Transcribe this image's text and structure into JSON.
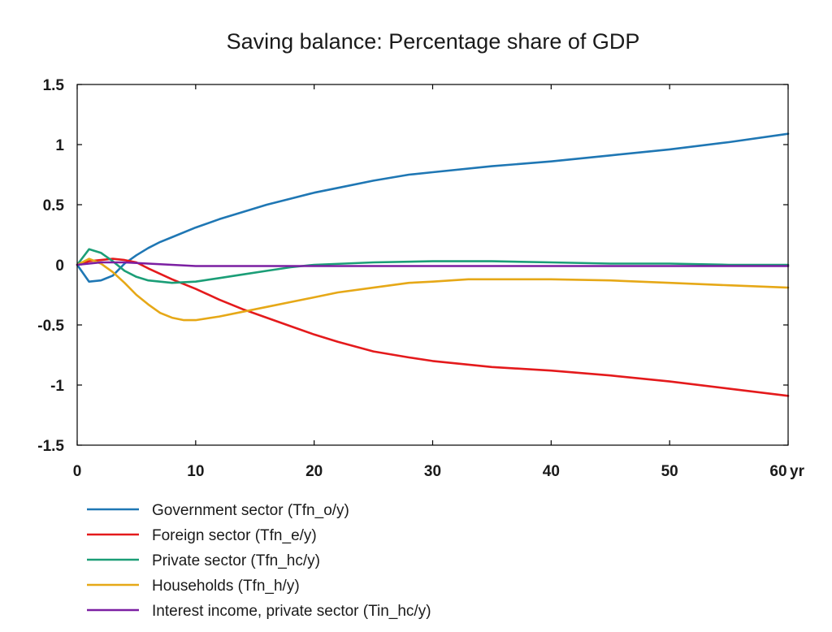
{
  "chart_data": {
    "type": "line",
    "title": "Saving balance: Percentage share of GDP",
    "xlabel": "",
    "ylabel": "",
    "x_unit_label": "yr",
    "xlim": [
      0,
      60
    ],
    "ylim": [
      -1.5,
      1.5
    ],
    "x_ticks": [
      0,
      10,
      20,
      30,
      40,
      50,
      60
    ],
    "x_tick_labels": [
      "0",
      "10",
      "20",
      "30",
      "40",
      "50",
      "60"
    ],
    "y_ticks": [
      1.5,
      1,
      0.5,
      0,
      -0.5,
      -1,
      -1.5
    ],
    "y_tick_labels": [
      "1.5",
      "1",
      "0.5",
      "0",
      "-0.5",
      "-1",
      "-1.5"
    ],
    "grid": false,
    "legend_position": "bottom",
    "series": [
      {
        "name": "Government sector (Tfn_o/y)",
        "color": "#1f77b4",
        "x": [
          0,
          1,
          2,
          3,
          4,
          5,
          6,
          7,
          8,
          10,
          12,
          14,
          16,
          18,
          20,
          22,
          25,
          28,
          30,
          35,
          40,
          45,
          50,
          55,
          60
        ],
        "y": [
          0,
          -0.14,
          -0.13,
          -0.09,
          0.01,
          0.08,
          0.14,
          0.19,
          0.23,
          0.31,
          0.38,
          0.44,
          0.5,
          0.55,
          0.6,
          0.64,
          0.7,
          0.75,
          0.77,
          0.82,
          0.86,
          0.91,
          0.96,
          1.02,
          1.09
        ]
      },
      {
        "name": "Foreign sector (Tfn_e/y)",
        "color": "#e41a1c",
        "x": [
          0,
          1,
          2,
          3,
          4,
          5,
          6,
          8,
          10,
          12,
          14,
          16,
          18,
          20,
          22,
          25,
          28,
          30,
          35,
          40,
          45,
          50,
          55,
          60
        ],
        "y": [
          0,
          0.03,
          0.04,
          0.05,
          0.04,
          0.02,
          -0.03,
          -0.12,
          -0.2,
          -0.29,
          -0.37,
          -0.44,
          -0.51,
          -0.58,
          -0.64,
          -0.72,
          -0.77,
          -0.8,
          -0.85,
          -0.88,
          -0.92,
          -0.97,
          -1.03,
          -1.09
        ]
      },
      {
        "name": "Private sector (Tfn_hc/y)",
        "color": "#1b9e77",
        "x": [
          0,
          1,
          2,
          3,
          4,
          5,
          6,
          8,
          10,
          12,
          14,
          16,
          18,
          20,
          25,
          30,
          35,
          40,
          45,
          50,
          55,
          60
        ],
        "y": [
          0,
          0.13,
          0.1,
          0.03,
          -0.05,
          -0.1,
          -0.13,
          -0.15,
          -0.14,
          -0.11,
          -0.08,
          -0.05,
          -0.02,
          0.0,
          0.02,
          0.03,
          0.03,
          0.02,
          0.01,
          0.01,
          0.0,
          0.0
        ]
      },
      {
        "name": "Households (Tfn_h/y)",
        "color": "#e6a817",
        "x": [
          0,
          1,
          2,
          3,
          4,
          5,
          6,
          7,
          8,
          9,
          10,
          12,
          14,
          16,
          18,
          20,
          22,
          25,
          28,
          30,
          33,
          35,
          38,
          40,
          45,
          50,
          55,
          60
        ],
        "y": [
          0,
          0.05,
          0.01,
          -0.06,
          -0.15,
          -0.25,
          -0.33,
          -0.4,
          -0.44,
          -0.46,
          -0.46,
          -0.43,
          -0.39,
          -0.35,
          -0.31,
          -0.27,
          -0.23,
          -0.19,
          -0.15,
          -0.14,
          -0.12,
          -0.12,
          -0.12,
          -0.12,
          -0.13,
          -0.15,
          -0.17,
          -0.19
        ]
      },
      {
        "name": "Interest income, private sector (Tin_hc/y)",
        "color": "#7b1fa2",
        "x": [
          0,
          2,
          4,
          6,
          8,
          10,
          12,
          15,
          20,
          30,
          40,
          50,
          60
        ],
        "y": [
          0,
          0.02,
          0.02,
          0.01,
          0.0,
          -0.01,
          -0.01,
          -0.01,
          -0.01,
          -0.01,
          -0.01,
          -0.01,
          -0.01
        ]
      }
    ]
  }
}
